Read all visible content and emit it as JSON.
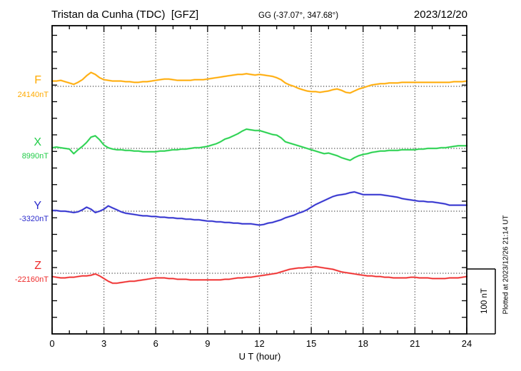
{
  "header": {
    "station_title": "Tristan da Cunha (TDC)  [GFZ]",
    "coords": "GG (-37.07°, 347.68°)",
    "date": "2023/12/20"
  },
  "side_note": "Plotted at 2023/12/26 21:14 UT",
  "scale_bar": {
    "label": "100 nT",
    "nT": 100
  },
  "x_axis": {
    "label": "U T (hour)",
    "major_ticks": [
      0,
      3,
      6,
      9,
      12,
      15,
      18,
      21,
      24
    ],
    "minor_step_hours": 1,
    "range": [
      0,
      24
    ]
  },
  "chart_data": {
    "type": "line",
    "title": "Tristan da Cunha (TDC) magnetogram 2023/12/20",
    "xlabel": "U T (hour)",
    "x_start": 0,
    "x_step": 0.25,
    "x_end": 24,
    "grid": "dotted vertical every 3h, dotted horizontal at each series baseline",
    "legend_position": "left margin, one label per series",
    "series": [
      {
        "id": "F",
        "label": "F",
        "base_label": "24140nT",
        "base_value_nT": 24140,
        "color": "#FFAA00",
        "halo": "#FFD27F",
        "values_nT_offset": [
          8,
          8,
          9,
          7,
          5,
          3,
          6,
          10,
          16,
          21,
          18,
          13,
          10,
          9,
          8,
          8,
          8,
          7,
          7,
          6,
          6,
          7,
          7,
          8,
          9,
          10,
          11,
          11,
          10,
          9,
          9,
          9,
          9,
          10,
          10,
          10,
          11,
          12,
          13,
          14,
          15,
          16,
          17,
          18,
          18,
          19,
          18,
          17,
          18,
          17,
          16,
          15,
          13,
          10,
          5,
          2,
          0,
          -3,
          -5,
          -7,
          -8,
          -8,
          -9,
          -8,
          -7,
          -5,
          -4,
          -6,
          -9,
          -10,
          -7,
          -4,
          -2,
          0,
          2,
          3,
          4,
          4,
          5,
          5,
          5,
          6,
          6,
          6,
          6,
          6,
          6,
          6,
          6,
          6,
          6,
          6,
          6,
          7,
          7,
          7,
          8
        ]
      },
      {
        "id": "X",
        "label": "X",
        "base_label": "8990nT",
        "base_value_nT": 8990,
        "color": "#21CC48",
        "halo": "#90EEA5",
        "values_nT_offset": [
          1,
          2,
          1,
          0,
          -1,
          -8,
          -2,
          3,
          9,
          17,
          19,
          13,
          5,
          1,
          -1,
          -2,
          -2,
          -3,
          -3,
          -4,
          -4,
          -5,
          -5,
          -5,
          -5,
          -4,
          -4,
          -3,
          -2,
          -2,
          -1,
          -1,
          0,
          1,
          1,
          2,
          3,
          5,
          7,
          10,
          14,
          16,
          19,
          22,
          26,
          29,
          28,
          27,
          27,
          25,
          23,
          21,
          20,
          16,
          10,
          8,
          6,
          4,
          2,
          0,
          -2,
          -4,
          -6,
          -8,
          -7,
          -9,
          -11,
          -14,
          -16,
          -18,
          -14,
          -11,
          -9,
          -8,
          -6,
          -5,
          -4,
          -4,
          -3,
          -3,
          -3,
          -2,
          -2,
          -2,
          -2,
          -1,
          -1,
          0,
          0,
          0,
          1,
          1,
          2,
          3,
          4,
          4,
          4
        ]
      },
      {
        "id": "Y",
        "label": "Y",
        "base_label": "-3320nT",
        "base_value_nT": -3320,
        "color": "#2B2BCC",
        "halo": "#9595E8",
        "values_nT_offset": [
          1,
          1,
          0,
          0,
          -1,
          -2,
          -1,
          2,
          6,
          3,
          -2,
          0,
          3,
          8,
          5,
          2,
          -1,
          -3,
          -4,
          -5,
          -6,
          -7,
          -7,
          -8,
          -8,
          -9,
          -9,
          -10,
          -10,
          -11,
          -11,
          -12,
          -12,
          -13,
          -13,
          -14,
          -15,
          -15,
          -16,
          -16,
          -17,
          -17,
          -18,
          -18,
          -19,
          -19,
          -19,
          -20,
          -21,
          -20,
          -18,
          -17,
          -15,
          -13,
          -10,
          -8,
          -6,
          -3,
          -1,
          2,
          6,
          10,
          13,
          16,
          19,
          22,
          24,
          25,
          26,
          28,
          29,
          27,
          25,
          25,
          25,
          25,
          25,
          24,
          23,
          22,
          21,
          19,
          18,
          17,
          16,
          15,
          15,
          14,
          14,
          13,
          12,
          11,
          9,
          9,
          9,
          9,
          9
        ]
      },
      {
        "id": "Z",
        "label": "Z",
        "base_label": "-22160nT",
        "base_value_nT": -22160,
        "color": "#EE2A2A",
        "halo": "#F9A2A2",
        "values_nT_offset": [
          -5,
          -6,
          -7,
          -7,
          -6,
          -6,
          -5,
          -4,
          -4,
          -3,
          -1,
          -4,
          -8,
          -12,
          -15,
          -15,
          -14,
          -13,
          -12,
          -12,
          -11,
          -10,
          -9,
          -8,
          -7,
          -7,
          -7,
          -8,
          -8,
          -9,
          -9,
          -9,
          -10,
          -10,
          -10,
          -10,
          -10,
          -10,
          -10,
          -10,
          -9,
          -9,
          -8,
          -7,
          -7,
          -6,
          -6,
          -5,
          -4,
          -3,
          -2,
          -1,
          0,
          2,
          4,
          6,
          7,
          8,
          8,
          9,
          9,
          10,
          9,
          8,
          7,
          6,
          4,
          2,
          1,
          0,
          -1,
          -2,
          -3,
          -4,
          -4,
          -5,
          -5,
          -6,
          -6,
          -7,
          -7,
          -7,
          -7,
          -6,
          -6,
          -7,
          -7,
          -7,
          -8,
          -8,
          -8,
          -8,
          -7,
          -7,
          -7,
          -6,
          -5
        ]
      }
    ]
  }
}
